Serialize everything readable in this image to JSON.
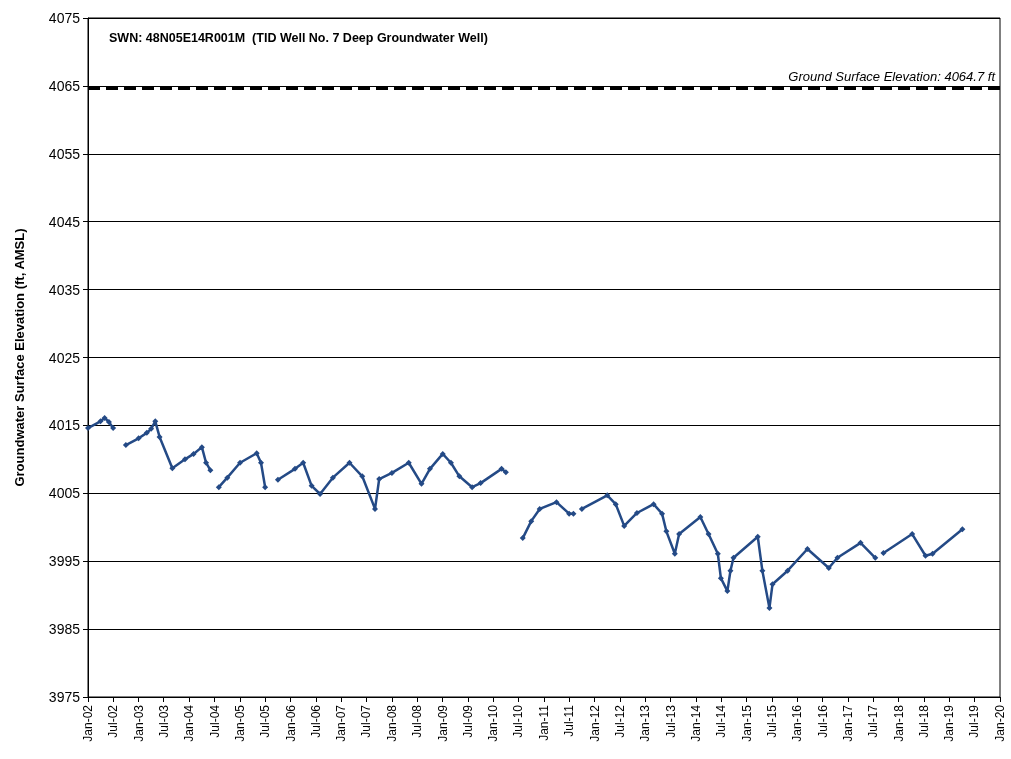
{
  "chart_data": {
    "type": "line",
    "title": "SWN: 48N05E14R001M  (TID Well No. 7 Deep Groundwater Well)",
    "ylabel": "Groundwater Surface Elevation (ft, AMSL)",
    "xlim": [
      "2002-01",
      "2020-01"
    ],
    "xticks": [
      {
        "value": "2002-01",
        "label": "Jan-02"
      },
      {
        "value": "2002-07",
        "label": "Jul-02"
      },
      {
        "value": "2003-01",
        "label": "Jan-03"
      },
      {
        "value": "2003-07",
        "label": "Jul-03"
      },
      {
        "value": "2004-01",
        "label": "Jan-04"
      },
      {
        "value": "2004-07",
        "label": "Jul-04"
      },
      {
        "value": "2005-01",
        "label": "Jan-05"
      },
      {
        "value": "2005-07",
        "label": "Jul-05"
      },
      {
        "value": "2006-01",
        "label": "Jan-06"
      },
      {
        "value": "2006-07",
        "label": "Jul-06"
      },
      {
        "value": "2007-01",
        "label": "Jan-07"
      },
      {
        "value": "2007-07",
        "label": "Jul-07"
      },
      {
        "value": "2008-01",
        "label": "Jan-08"
      },
      {
        "value": "2008-07",
        "label": "Jul-08"
      },
      {
        "value": "2009-01",
        "label": "Jan-09"
      },
      {
        "value": "2009-07",
        "label": "Jul-09"
      },
      {
        "value": "2010-01",
        "label": "Jan-10"
      },
      {
        "value": "2010-07",
        "label": "Jul-10"
      },
      {
        "value": "2011-01",
        "label": "Jan-11"
      },
      {
        "value": "2011-07",
        "label": "Jul-11"
      },
      {
        "value": "2012-01",
        "label": "Jan-12"
      },
      {
        "value": "2012-07",
        "label": "Jul-12"
      },
      {
        "value": "2013-01",
        "label": "Jan-13"
      },
      {
        "value": "2013-07",
        "label": "Jul-13"
      },
      {
        "value": "2014-01",
        "label": "Jan-14"
      },
      {
        "value": "2014-07",
        "label": "Jul-14"
      },
      {
        "value": "2015-01",
        "label": "Jan-15"
      },
      {
        "value": "2015-07",
        "label": "Jul-15"
      },
      {
        "value": "2016-01",
        "label": "Jan-16"
      },
      {
        "value": "2016-07",
        "label": "Jul-16"
      },
      {
        "value": "2017-01",
        "label": "Jan-17"
      },
      {
        "value": "2017-07",
        "label": "Jul-17"
      },
      {
        "value": "2018-01",
        "label": "Jan-18"
      },
      {
        "value": "2018-07",
        "label": "Jul-18"
      },
      {
        "value": "2019-01",
        "label": "Jan-19"
      },
      {
        "value": "2019-07",
        "label": "Jul-19"
      },
      {
        "value": "2020-01",
        "label": "Jan-20"
      }
    ],
    "ylim": [
      3975,
      4075
    ],
    "yticks": [
      3975,
      3985,
      3995,
      4005,
      4015,
      4025,
      4035,
      4045,
      4055,
      4065,
      4075
    ],
    "grid": "y",
    "marker": "diamond",
    "line_style": "solid",
    "ref_lines": [
      {
        "axis": "y",
        "value": 4064.7,
        "label": "Ground Surface Elevation: 4064.7 ft",
        "color": "#000000",
        "line_style": "dashed"
      }
    ],
    "series": [
      {
        "color": "#244a86",
        "x": [
          "2002-01",
          "2002-04",
          "2002-05",
          "2002-06",
          "2002-07",
          "2002-08",
          "2002-10",
          "2003-01",
          "2003-03",
          "2003-04",
          "2003-05",
          "2003-06",
          "2003-09",
          "2003-12",
          "2004-02",
          "2004-04",
          "2004-05",
          "2004-06",
          "2004-07",
          "2004-08",
          "2004-10",
          "2005-01",
          "2005-05",
          "2005-06",
          "2005-07",
          "2005-08",
          "2005-10",
          "2006-02",
          "2006-04",
          "2006-06",
          "2006-08",
          "2006-11",
          "2007-03",
          "2007-06",
          "2007-09",
          "2007-10",
          "2008-01",
          "2008-05",
          "2008-08",
          "2008-10",
          "2009-01",
          "2009-03",
          "2009-05",
          "2009-08",
          "2009-10",
          "2010-03",
          "2010-04",
          "2010-05",
          "2010-08",
          "2010-10",
          "2010-12",
          "2011-04",
          "2011-07",
          "2011-08",
          "2011-09",
          "2011-10",
          "2012-04",
          "2012-06",
          "2012-08",
          "2012-11",
          "2013-03",
          "2013-05",
          "2013-06",
          "2013-08",
          "2013-09",
          "2014-02",
          "2014-04",
          "2014-06-07",
          "2014-06-29",
          "2014-08-15",
          "2014-09-06",
          "2014-09-28",
          "2015-03-22",
          "2015-04-24",
          "2015-06-14",
          "2015-07-06",
          "2015-10-23",
          "2016-03-14",
          "2016-08-15",
          "2016-10-16",
          "2017-04-01",
          "2017-07-16",
          "2017-08-01",
          "2017-09-13",
          "2018-04-08",
          "2018-07-13",
          "2018-09-02",
          "2019-04-05"
        ],
        "values": [
          4014.6,
          4015.6,
          4016.1,
          4015.5,
          4014.6,
          null,
          4012.1,
          4013.1,
          4013.9,
          4014.5,
          4015.6,
          4013.3,
          4008.7,
          4010.0,
          4010.8,
          4011.8,
          4009.5,
          4008.4,
          null,
          4005.9,
          4007.3,
          4009.5,
          4010.9,
          4009.5,
          4005.9,
          null,
          4007.0,
          4008.6,
          4009.5,
          4006.1,
          4004.9,
          4007.3,
          4009.5,
          4007.5,
          4002.7,
          4007.1,
          4008.0,
          4009.5,
          4006.4,
          4008.6,
          4010.8,
          4009.5,
          4007.5,
          4005.9,
          4006.5,
          4008.6,
          4008.1,
          null,
          3998.4,
          4000.9,
          4002.7,
          4003.7,
          4002.0,
          4002.0,
          null,
          4002.7,
          4004.7,
          4003.4,
          4000.2,
          4002.1,
          4003.4,
          4002.0,
          3999.4,
          3996.1,
          3999.0,
          4001.5,
          3999.0,
          3996.1,
          3992.5,
          3990.6,
          3993.6,
          3995.5,
          3998.6,
          3993.6,
          3988.1,
          3991.6,
          3993.6,
          3996.8,
          3994.0,
          3995.5,
          3997.7,
          3995.5,
          null,
          3996.2,
          3999.0,
          3995.8,
          3996.1,
          3999.7
        ]
      }
    ]
  }
}
